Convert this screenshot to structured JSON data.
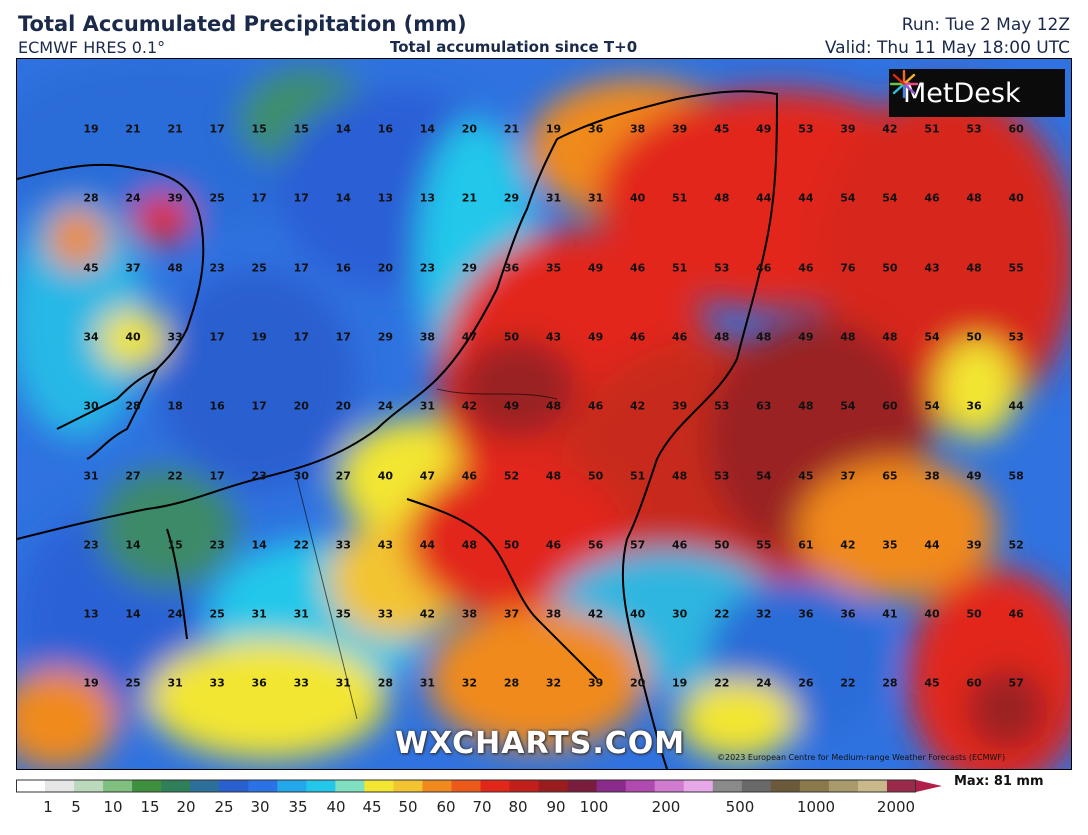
{
  "header": {
    "title": "Total Accumulated Precipitation (mm)",
    "model": "ECMWF HRES 0.1°",
    "subtitle": "Total accumulation since T+0",
    "run": "Run: Tue 2 May 12Z",
    "valid": "Valid: Thu 11 May 18:00 UTC"
  },
  "map": {
    "logo_text": "MetDesk",
    "watermark": "WXCHARTS.COM",
    "copyright": "©2023 European Centre for Medium-range Weather Forecasts (ECMWF)",
    "grid_values": [
      [
        19,
        21,
        21,
        17,
        15,
        15,
        14,
        16,
        14,
        20,
        21,
        19,
        36,
        38,
        39,
        45,
        49,
        53,
        39,
        42,
        51,
        53,
        60
      ],
      [
        28,
        24,
        39,
        25,
        17,
        17,
        14,
        13,
        13,
        21,
        29,
        31,
        31,
        40,
        51,
        48,
        44,
        44,
        54,
        54,
        46,
        48,
        40
      ],
      [
        45,
        37,
        48,
        23,
        25,
        17,
        16,
        20,
        23,
        29,
        36,
        35,
        49,
        46,
        51,
        53,
        46,
        46,
        76,
        50,
        43,
        48,
        55
      ],
      [
        34,
        40,
        33,
        17,
        19,
        17,
        17,
        29,
        38,
        47,
        50,
        43,
        49,
        46,
        46,
        48,
        48,
        49,
        48,
        48,
        54,
        50,
        53
      ],
      [
        30,
        28,
        18,
        16,
        17,
        20,
        20,
        24,
        31,
        42,
        49,
        48,
        46,
        42,
        39,
        53,
        63,
        48,
        54,
        60,
        54,
        36,
        44
      ],
      [
        31,
        27,
        22,
        17,
        23,
        30,
        27,
        40,
        47,
        46,
        52,
        48,
        50,
        51,
        48,
        53,
        54,
        45,
        37,
        65,
        38,
        49,
        58
      ],
      [
        23,
        14,
        15,
        23,
        14,
        22,
        33,
        43,
        44,
        48,
        50,
        46,
        56,
        57,
        46,
        50,
        55,
        61,
        42,
        35,
        44,
        39,
        52
      ],
      [
        13,
        14,
        24,
        25,
        31,
        31,
        35,
        33,
        42,
        38,
        37,
        38,
        42,
        40,
        30,
        22,
        32,
        36,
        36,
        41,
        40,
        50,
        46
      ],
      [
        19,
        25,
        31,
        33,
        36,
        33,
        31,
        28,
        31,
        32,
        28,
        32,
        39,
        20,
        19,
        22,
        24,
        26,
        22,
        28,
        45,
        60,
        57
      ]
    ],
    "colors": {
      "dry": "#f4f4f4",
      "light": "#4a9a4a",
      "moderate": "#2a64e0",
      "cyan": "#22c7ea",
      "yellow": "#f3e631",
      "orange": "#f08a1e",
      "red": "#e2261a",
      "dark_red": "#8b1c1e",
      "purple": "#7a2a8a",
      "coast": "#000000"
    }
  },
  "legend": {
    "ticks": [
      "1",
      "5",
      "10",
      "15",
      "20",
      "25",
      "30",
      "35",
      "40",
      "45",
      "50",
      "60",
      "70",
      "80",
      "90",
      "100",
      "200",
      "500",
      "1000",
      "2000"
    ],
    "max_label": "Max: 81 mm"
  }
}
